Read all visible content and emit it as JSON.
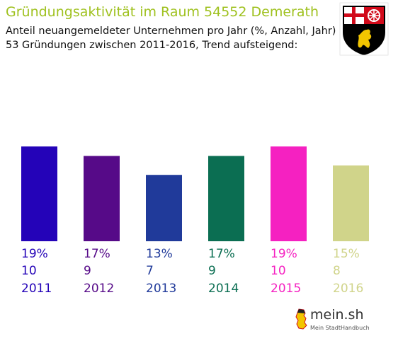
{
  "header": {
    "title": "Gründungsaktivität im Raum 54552 Demerath",
    "subtitle_line1": "Anteil neuangemeldeter Unternehmen pro Jahr (%, Anzahl, Jahr)",
    "subtitle_line2": "53 Gründungen zwischen 2011-2016, Trend aufsteigend:"
  },
  "chart_data": {
    "type": "bar",
    "categories": [
      "2011",
      "2012",
      "2013",
      "2014",
      "2015",
      "2016"
    ],
    "values": [
      10,
      9,
      7,
      9,
      10,
      8
    ],
    "percent_labels": [
      "19%",
      "17%",
      "13%",
      "17%",
      "19%",
      "15%"
    ],
    "count_labels": [
      "10",
      "9",
      "7",
      "9",
      "10",
      "8"
    ],
    "colors": [
      "#2403b8",
      "#560a88",
      "#203a9a",
      "#0b6e52",
      "#f521c1",
      "#d0d48a"
    ],
    "ylim": [
      0,
      10
    ],
    "grid": false,
    "legend": "none"
  },
  "brand": {
    "crest_icon": "rhineland-palatinate-coat-of-arms-icon",
    "logo_text": "mein.sh",
    "logo_subtext": "Mein StadtHandbuch",
    "logo_icon": "germany-map-icon"
  }
}
